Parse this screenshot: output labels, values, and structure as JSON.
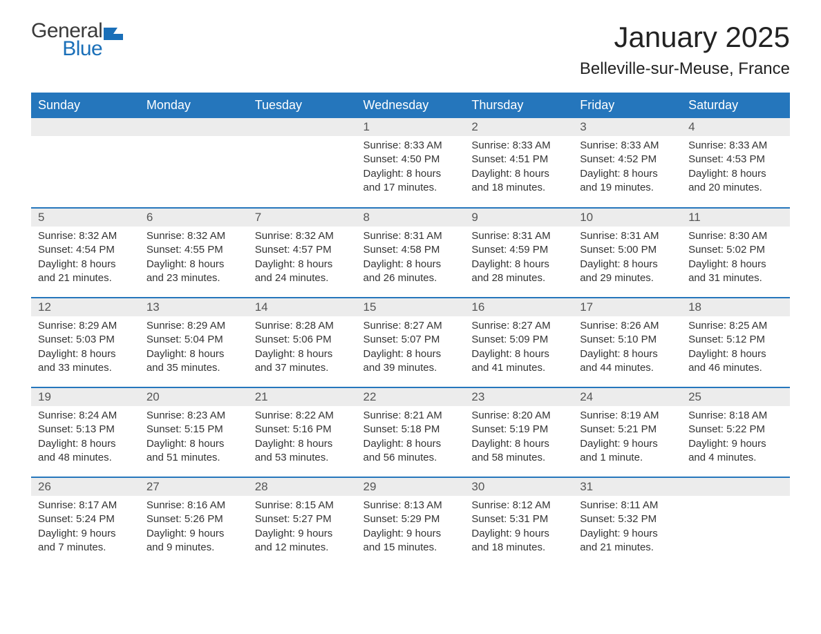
{
  "logo": {
    "general": "General",
    "blue": "Blue",
    "icon_color": "#1a6fb8"
  },
  "title": "January 2025",
  "location": "Belleville-sur-Meuse, France",
  "header_bg": "#2576bc",
  "header_fg": "#ffffff",
  "daynum_bg": "#ececec",
  "border_color": "#2576bc",
  "days_of_week": [
    "Sunday",
    "Monday",
    "Tuesday",
    "Wednesday",
    "Thursday",
    "Friday",
    "Saturday"
  ],
  "weeks": [
    [
      null,
      null,
      null,
      {
        "n": "1",
        "sunrise": "8:33 AM",
        "sunset": "4:50 PM",
        "daylight": "8 hours and 17 minutes."
      },
      {
        "n": "2",
        "sunrise": "8:33 AM",
        "sunset": "4:51 PM",
        "daylight": "8 hours and 18 minutes."
      },
      {
        "n": "3",
        "sunrise": "8:33 AM",
        "sunset": "4:52 PM",
        "daylight": "8 hours and 19 minutes."
      },
      {
        "n": "4",
        "sunrise": "8:33 AM",
        "sunset": "4:53 PM",
        "daylight": "8 hours and 20 minutes."
      }
    ],
    [
      {
        "n": "5",
        "sunrise": "8:32 AM",
        "sunset": "4:54 PM",
        "daylight": "8 hours and 21 minutes."
      },
      {
        "n": "6",
        "sunrise": "8:32 AM",
        "sunset": "4:55 PM",
        "daylight": "8 hours and 23 minutes."
      },
      {
        "n": "7",
        "sunrise": "8:32 AM",
        "sunset": "4:57 PM",
        "daylight": "8 hours and 24 minutes."
      },
      {
        "n": "8",
        "sunrise": "8:31 AM",
        "sunset": "4:58 PM",
        "daylight": "8 hours and 26 minutes."
      },
      {
        "n": "9",
        "sunrise": "8:31 AM",
        "sunset": "4:59 PM",
        "daylight": "8 hours and 28 minutes."
      },
      {
        "n": "10",
        "sunrise": "8:31 AM",
        "sunset": "5:00 PM",
        "daylight": "8 hours and 29 minutes."
      },
      {
        "n": "11",
        "sunrise": "8:30 AM",
        "sunset": "5:02 PM",
        "daylight": "8 hours and 31 minutes."
      }
    ],
    [
      {
        "n": "12",
        "sunrise": "8:29 AM",
        "sunset": "5:03 PM",
        "daylight": "8 hours and 33 minutes."
      },
      {
        "n": "13",
        "sunrise": "8:29 AM",
        "sunset": "5:04 PM",
        "daylight": "8 hours and 35 minutes."
      },
      {
        "n": "14",
        "sunrise": "8:28 AM",
        "sunset": "5:06 PM",
        "daylight": "8 hours and 37 minutes."
      },
      {
        "n": "15",
        "sunrise": "8:27 AM",
        "sunset": "5:07 PM",
        "daylight": "8 hours and 39 minutes."
      },
      {
        "n": "16",
        "sunrise": "8:27 AM",
        "sunset": "5:09 PM",
        "daylight": "8 hours and 41 minutes."
      },
      {
        "n": "17",
        "sunrise": "8:26 AM",
        "sunset": "5:10 PM",
        "daylight": "8 hours and 44 minutes."
      },
      {
        "n": "18",
        "sunrise": "8:25 AM",
        "sunset": "5:12 PM",
        "daylight": "8 hours and 46 minutes."
      }
    ],
    [
      {
        "n": "19",
        "sunrise": "8:24 AM",
        "sunset": "5:13 PM",
        "daylight": "8 hours and 48 minutes."
      },
      {
        "n": "20",
        "sunrise": "8:23 AM",
        "sunset": "5:15 PM",
        "daylight": "8 hours and 51 minutes."
      },
      {
        "n": "21",
        "sunrise": "8:22 AM",
        "sunset": "5:16 PM",
        "daylight": "8 hours and 53 minutes."
      },
      {
        "n": "22",
        "sunrise": "8:21 AM",
        "sunset": "5:18 PM",
        "daylight": "8 hours and 56 minutes."
      },
      {
        "n": "23",
        "sunrise": "8:20 AM",
        "sunset": "5:19 PM",
        "daylight": "8 hours and 58 minutes."
      },
      {
        "n": "24",
        "sunrise": "8:19 AM",
        "sunset": "5:21 PM",
        "daylight": "9 hours and 1 minute."
      },
      {
        "n": "25",
        "sunrise": "8:18 AM",
        "sunset": "5:22 PM",
        "daylight": "9 hours and 4 minutes."
      }
    ],
    [
      {
        "n": "26",
        "sunrise": "8:17 AM",
        "sunset": "5:24 PM",
        "daylight": "9 hours and 7 minutes."
      },
      {
        "n": "27",
        "sunrise": "8:16 AM",
        "sunset": "5:26 PM",
        "daylight": "9 hours and 9 minutes."
      },
      {
        "n": "28",
        "sunrise": "8:15 AM",
        "sunset": "5:27 PM",
        "daylight": "9 hours and 12 minutes."
      },
      {
        "n": "29",
        "sunrise": "8:13 AM",
        "sunset": "5:29 PM",
        "daylight": "9 hours and 15 minutes."
      },
      {
        "n": "30",
        "sunrise": "8:12 AM",
        "sunset": "5:31 PM",
        "daylight": "9 hours and 18 minutes."
      },
      {
        "n": "31",
        "sunrise": "8:11 AM",
        "sunset": "5:32 PM",
        "daylight": "9 hours and 21 minutes."
      },
      null
    ]
  ],
  "labels": {
    "sunrise": "Sunrise: ",
    "sunset": "Sunset: ",
    "daylight": "Daylight: "
  }
}
